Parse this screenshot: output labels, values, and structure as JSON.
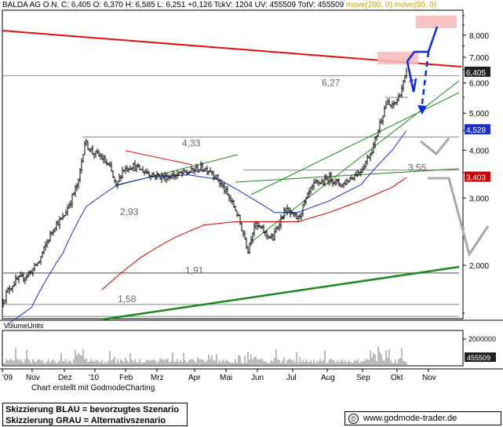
{
  "header": {
    "instrument": "BALDA AG O.N.",
    "quote": "C: 6,405 O: 6,370 H: 6,585 L: 6,251 +0,126 TckV: 1204 UV: 455509 TotV: 455509",
    "ma_long": "move(200, 0)",
    "ma_short": "move(50, 0)"
  },
  "colors": {
    "price": "#000000",
    "ma200": "#cc0000",
    "ma50": "#1a2fd0",
    "trend_green": "#1a8a1a",
    "resistance_red": "#e01010",
    "scenario_blue": "#0a28e0",
    "scenario_gray": "#a8a8a8",
    "target_zone": "#f6b8b8"
  },
  "chart_data": {
    "type": "candlestick",
    "y_scale": "log",
    "ylim": [
      1.45,
      9.3
    ],
    "y_ticks": [
      2000,
      3000,
      4000,
      5000,
      6000,
      7000,
      8000
    ],
    "y_tick_labels": [
      "2,000",
      "3,000",
      "4,000",
      "5,000",
      "6,000",
      "7,000",
      "8,000"
    ],
    "x_tick_labels": [
      "'09",
      "Nov",
      "Dez",
      "'10",
      "Feb",
      "Mrz",
      "Apr",
      "Mai",
      "Jun",
      "Jul",
      "Aug",
      "Sep",
      "Okt",
      "Nov"
    ],
    "level_labels": [
      "6,27",
      "4,33",
      "3,55",
      "2,93",
      "1,91",
      "1,58"
    ],
    "price_tags": {
      "last": "6,405",
      "ma50": "4,528",
      "ma200": "3,403"
    },
    "price_anchors": [
      [
        0,
        1.55
      ],
      [
        10,
        1.72
      ],
      [
        20,
        1.82
      ],
      [
        30,
        1.86
      ],
      [
        40,
        1.93
      ],
      [
        50,
        2.05
      ],
      [
        60,
        2.3
      ],
      [
        70,
        2.55
      ],
      [
        80,
        2.65
      ],
      [
        90,
        2.95
      ],
      [
        100,
        3.3
      ],
      [
        108,
        4.2
      ],
      [
        118,
        3.95
      ],
      [
        128,
        3.85
      ],
      [
        140,
        3.6
      ],
      [
        148,
        3.2
      ],
      [
        156,
        3.55
      ],
      [
        168,
        3.65
      ],
      [
        180,
        3.55
      ],
      [
        195,
        3.45
      ],
      [
        210,
        3.4
      ],
      [
        225,
        3.45
      ],
      [
        240,
        3.5
      ],
      [
        255,
        3.6
      ],
      [
        268,
        3.55
      ],
      [
        280,
        3.3
      ],
      [
        290,
        3.05
      ],
      [
        300,
        2.8
      ],
      [
        308,
        2.5
      ],
      [
        316,
        2.2
      ],
      [
        324,
        2.55
      ],
      [
        332,
        2.5
      ],
      [
        340,
        2.4
      ],
      [
        348,
        2.35
      ],
      [
        356,
        2.6
      ],
      [
        364,
        2.8
      ],
      [
        372,
        2.7
      ],
      [
        380,
        2.65
      ],
      [
        388,
        2.9
      ],
      [
        396,
        3.15
      ],
      [
        404,
        3.3
      ],
      [
        412,
        3.3
      ],
      [
        420,
        3.4
      ],
      [
        428,
        3.3
      ],
      [
        436,
        3.25
      ],
      [
        444,
        3.35
      ],
      [
        452,
        3.45
      ],
      [
        460,
        3.55
      ],
      [
        468,
        3.8
      ],
      [
        476,
        4.1
      ],
      [
        484,
        4.7
      ],
      [
        492,
        5.3
      ],
      [
        500,
        5.2
      ],
      [
        508,
        5.5
      ],
      [
        514,
        6.0
      ],
      [
        519,
        6.4
      ]
    ],
    "ma50_anchors": [
      [
        0,
        1.35
      ],
      [
        40,
        1.55
      ],
      [
        80,
        2.15
      ],
      [
        110,
        2.85
      ],
      [
        150,
        3.25
      ],
      [
        190,
        3.4
      ],
      [
        240,
        3.45
      ],
      [
        280,
        3.35
      ],
      [
        320,
        3.0
      ],
      [
        350,
        2.75
      ],
      [
        380,
        2.75
      ],
      [
        420,
        2.95
      ],
      [
        460,
        3.25
      ],
      [
        500,
        4.0
      ],
      [
        519,
        4.528
      ]
    ],
    "ma200_anchors": [
      [
        100,
        1.5
      ],
      [
        140,
        1.8
      ],
      [
        180,
        2.1
      ],
      [
        220,
        2.35
      ],
      [
        260,
        2.55
      ],
      [
        300,
        2.6
      ],
      [
        340,
        2.6
      ],
      [
        380,
        2.6
      ],
      [
        420,
        2.75
      ],
      [
        460,
        2.95
      ],
      [
        500,
        3.2
      ],
      [
        519,
        3.403
      ]
    ],
    "volume": {
      "label": "VolumeUnits",
      "y_tick_label": "2000000",
      "last_label": "455509"
    }
  },
  "footer": {
    "credit": "Chart erstellt mit GodmodeCharting",
    "legend_blue": "Skizzierung BLAU = bevorzugtes Szenario",
    "legend_gray": "Skizzierung GRAU = Alternativszenario",
    "copyright": "©",
    "site": "www.godmode-trader.de"
  }
}
